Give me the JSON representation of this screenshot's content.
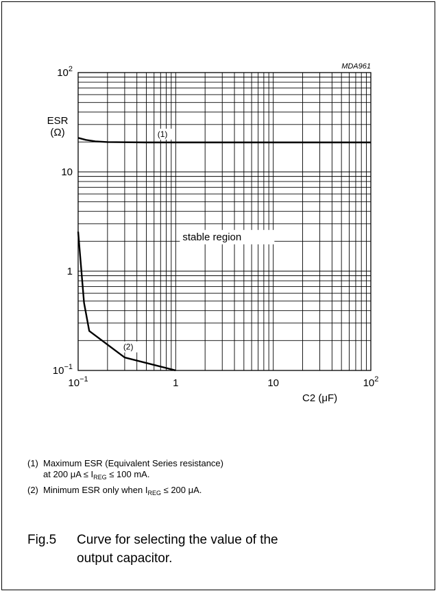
{
  "chart_data": {
    "type": "line",
    "id_label": "MDA961",
    "xscale": "log",
    "yscale": "log",
    "xlim": [
      0.1,
      100
    ],
    "ylim": [
      0.1,
      100
    ],
    "grid": true,
    "ylabel": "ESR",
    "ylabel_unit": "(Ω)",
    "xlabel": "C2 (μF)",
    "x_ticks": [
      {
        "value": 0.1,
        "base": "10",
        "exp": "−1"
      },
      {
        "value": 1,
        "base": "1",
        "exp": ""
      },
      {
        "value": 10,
        "base": "10",
        "exp": ""
      },
      {
        "value": 100,
        "base": "10",
        "exp": "2"
      }
    ],
    "y_ticks": [
      {
        "value": 0.1,
        "base": "10",
        "exp": "−1"
      },
      {
        "value": 1,
        "base": "1",
        "exp": ""
      },
      {
        "value": 10,
        "base": "10",
        "exp": ""
      },
      {
        "value": 100,
        "base": "10",
        "exp": "2"
      }
    ],
    "region_label": "stable region",
    "series": [
      {
        "label": "(1)",
        "points": [
          [
            0.1,
            22
          ],
          [
            0.12,
            21
          ],
          [
            0.15,
            20.3
          ],
          [
            0.2,
            20
          ],
          [
            0.3,
            19.9
          ],
          [
            0.5,
            19.8
          ],
          [
            1,
            19.8
          ],
          [
            10,
            19.8
          ],
          [
            100,
            19.8
          ]
        ]
      },
      {
        "label": "(2)",
        "points": [
          [
            0.1,
            2.5
          ],
          [
            0.115,
            0.48
          ],
          [
            0.13,
            0.25
          ],
          [
            0.3,
            0.135
          ],
          [
            1,
            0.1
          ]
        ]
      }
    ]
  },
  "notes": [
    {
      "num": "(1)",
      "line1": "Maximum ESR (Equivalent Series resistance)",
      "l2a": "at 200 μA ≤ I",
      "l2sub": "REG",
      "l2b": " ≤ 100 mA."
    },
    {
      "num": "(2)",
      "a": "Minimum ESR only when I",
      "sub": "REG",
      "b": " ≤ 200 μA."
    }
  ],
  "caption": {
    "number": "Fig.5",
    "text": "Curve for selecting the value of the output capacitor."
  }
}
